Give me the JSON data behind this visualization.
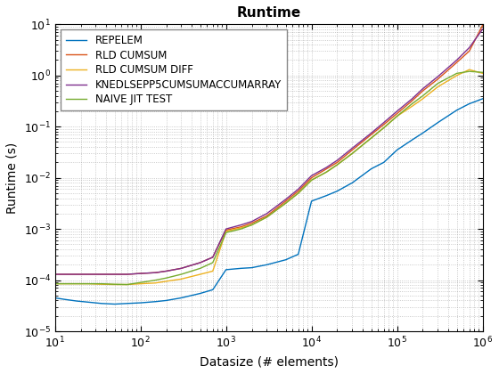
{
  "title": "Runtime",
  "xlabel": "Datasize (# elements)",
  "ylabel": "Runtime (s)",
  "xlim": [
    10,
    1000000
  ],
  "ylim": [
    1e-05,
    10
  ],
  "series": [
    {
      "label": "REPELEM",
      "color": "#0072BD",
      "x": [
        10,
        13,
        18,
        25,
        35,
        50,
        70,
        100,
        150,
        200,
        300,
        500,
        700,
        1000,
        1500,
        2000,
        3000,
        5000,
        7000,
        10000,
        15000,
        20000,
        30000,
        50000,
        70000,
        100000,
        150000,
        200000,
        300000,
        500000,
        700000,
        1000000
      ],
      "y": [
        4.5e-05,
        4.2e-05,
        3.9e-05,
        3.7e-05,
        3.5e-05,
        3.4e-05,
        3.5e-05,
        3.6e-05,
        3.8e-05,
        4e-05,
        4.5e-05,
        5.5e-05,
        6.5e-05,
        0.00016,
        0.00017,
        0.000175,
        0.0002,
        0.00025,
        0.00032,
        0.0035,
        0.0045,
        0.0055,
        0.008,
        0.015,
        0.02,
        0.035,
        0.055,
        0.075,
        0.12,
        0.21,
        0.28,
        0.35
      ]
    },
    {
      "label": "RLD CUMSUM",
      "color": "#D95319",
      "x": [
        10,
        13,
        18,
        25,
        35,
        50,
        70,
        100,
        150,
        200,
        300,
        500,
        700,
        1000,
        1500,
        2000,
        3000,
        5000,
        7000,
        10000,
        15000,
        20000,
        30000,
        50000,
        70000,
        100000,
        150000,
        200000,
        300000,
        500000,
        700000,
        1000000
      ],
      "y": [
        0.00013,
        0.00013,
        0.00013,
        0.00013,
        0.00013,
        0.00013,
        0.00013,
        0.000135,
        0.00014,
        0.00015,
        0.00017,
        0.00022,
        0.00028,
        0.00095,
        0.0011,
        0.0013,
        0.0018,
        0.0035,
        0.0055,
        0.01,
        0.015,
        0.02,
        0.035,
        0.07,
        0.11,
        0.18,
        0.32,
        0.5,
        0.85,
        1.8,
        3.0,
        9.5
      ]
    },
    {
      "label": "RLD CUMSUM DIFF",
      "color": "#EDB120",
      "x": [
        10,
        13,
        18,
        25,
        35,
        50,
        70,
        100,
        150,
        200,
        300,
        500,
        700,
        1000,
        1500,
        2000,
        3000,
        5000,
        7000,
        10000,
        15000,
        20000,
        30000,
        50000,
        70000,
        100000,
        150000,
        200000,
        300000,
        500000,
        700000,
        1000000
      ],
      "y": [
        8.5e-05,
        8.5e-05,
        8.5e-05,
        8.5e-05,
        8.3e-05,
        8.2e-05,
        8.2e-05,
        8.5e-05,
        8.8e-05,
        9.5e-05,
        0.000105,
        0.00013,
        0.00015,
        0.0009,
        0.00105,
        0.0012,
        0.0017,
        0.0032,
        0.005,
        0.009,
        0.013,
        0.018,
        0.03,
        0.06,
        0.095,
        0.16,
        0.25,
        0.35,
        0.6,
        1.0,
        1.3,
        1.1
      ]
    },
    {
      "label": "KNEDLSEPP5CUMSUMACCUMARRAY",
      "color": "#7E2F8E",
      "x": [
        10,
        13,
        18,
        25,
        35,
        50,
        70,
        100,
        150,
        200,
        300,
        500,
        700,
        1000,
        1500,
        2000,
        3000,
        5000,
        7000,
        10000,
        15000,
        20000,
        30000,
        50000,
        70000,
        100000,
        150000,
        200000,
        300000,
        500000,
        700000,
        1000000
      ],
      "y": [
        0.00013,
        0.00013,
        0.00013,
        0.00013,
        0.00013,
        0.00013,
        0.00013,
        0.000135,
        0.00014,
        0.00015,
        0.00017,
        0.00022,
        0.00028,
        0.001,
        0.0012,
        0.0014,
        0.002,
        0.0038,
        0.006,
        0.011,
        0.016,
        0.022,
        0.038,
        0.075,
        0.12,
        0.2,
        0.35,
        0.55,
        0.95,
        2.0,
        3.5,
        8.0
      ]
    },
    {
      "label": "NAIVE JIT TEST",
      "color": "#77AC30",
      "x": [
        10,
        13,
        18,
        25,
        35,
        50,
        70,
        100,
        150,
        200,
        300,
        500,
        700,
        1000,
        1500,
        2000,
        3000,
        5000,
        7000,
        10000,
        15000,
        20000,
        30000,
        50000,
        70000,
        100000,
        150000,
        200000,
        300000,
        500000,
        700000,
        1000000
      ],
      "y": [
        8.5e-05,
        8.5e-05,
        8.5e-05,
        8.5e-05,
        8.5e-05,
        8.3e-05,
        8.2e-05,
        9e-05,
        0.0001,
        0.00011,
        0.00013,
        0.00017,
        0.00022,
        0.00085,
        0.001,
        0.0012,
        0.0017,
        0.0032,
        0.005,
        0.009,
        0.013,
        0.018,
        0.03,
        0.06,
        0.095,
        0.16,
        0.28,
        0.4,
        0.7,
        1.1,
        1.2,
        1.15
      ]
    }
  ],
  "legend_loc": "upper left",
  "title_fontsize": 11,
  "label_fontsize": 10,
  "tick_fontsize": 9,
  "linewidth": 1.0,
  "background_color": "#ffffff",
  "grid_color": "#aaaaaa",
  "grid_dotsize": 0.5
}
